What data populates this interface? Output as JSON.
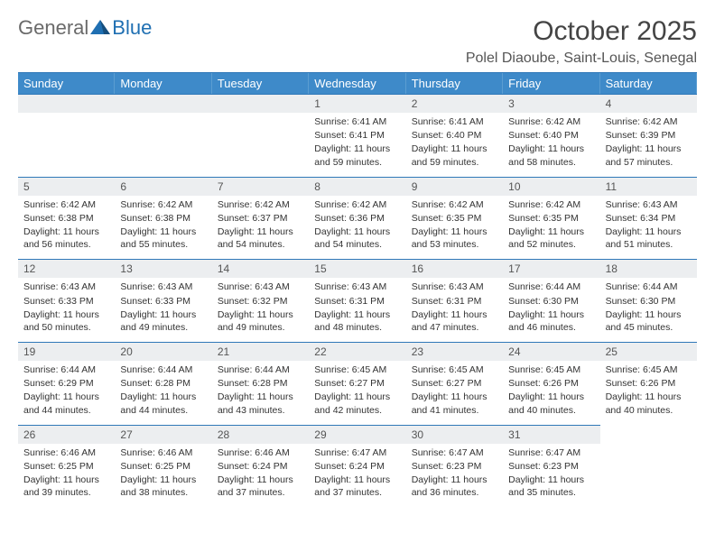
{
  "brand": {
    "word1": "General",
    "word2": "Blue"
  },
  "title": "October 2025",
  "location": "Polel Diaoube, Saint-Louis, Senegal",
  "colors": {
    "header_blue": "#3e8ac9",
    "border_blue": "#2f78b8",
    "band_gray": "#eceef0",
    "text_dark": "#333333",
    "logo_gray": "#6a6a6a",
    "logo_blue": "#1f6fb2"
  },
  "daynames": [
    "Sunday",
    "Monday",
    "Tuesday",
    "Wednesday",
    "Thursday",
    "Friday",
    "Saturday"
  ],
  "leadingBlanks": 3,
  "days": [
    {
      "d": "1",
      "sr": "6:41 AM",
      "ss": "6:41 PM",
      "dl": "11 hours and 59 minutes."
    },
    {
      "d": "2",
      "sr": "6:41 AM",
      "ss": "6:40 PM",
      "dl": "11 hours and 59 minutes."
    },
    {
      "d": "3",
      "sr": "6:42 AM",
      "ss": "6:40 PM",
      "dl": "11 hours and 58 minutes."
    },
    {
      "d": "4",
      "sr": "6:42 AM",
      "ss": "6:39 PM",
      "dl": "11 hours and 57 minutes."
    },
    {
      "d": "5",
      "sr": "6:42 AM",
      "ss": "6:38 PM",
      "dl": "11 hours and 56 minutes."
    },
    {
      "d": "6",
      "sr": "6:42 AM",
      "ss": "6:38 PM",
      "dl": "11 hours and 55 minutes."
    },
    {
      "d": "7",
      "sr": "6:42 AM",
      "ss": "6:37 PM",
      "dl": "11 hours and 54 minutes."
    },
    {
      "d": "8",
      "sr": "6:42 AM",
      "ss": "6:36 PM",
      "dl": "11 hours and 54 minutes."
    },
    {
      "d": "9",
      "sr": "6:42 AM",
      "ss": "6:35 PM",
      "dl": "11 hours and 53 minutes."
    },
    {
      "d": "10",
      "sr": "6:42 AM",
      "ss": "6:35 PM",
      "dl": "11 hours and 52 minutes."
    },
    {
      "d": "11",
      "sr": "6:43 AM",
      "ss": "6:34 PM",
      "dl": "11 hours and 51 minutes."
    },
    {
      "d": "12",
      "sr": "6:43 AM",
      "ss": "6:33 PM",
      "dl": "11 hours and 50 minutes."
    },
    {
      "d": "13",
      "sr": "6:43 AM",
      "ss": "6:33 PM",
      "dl": "11 hours and 49 minutes."
    },
    {
      "d": "14",
      "sr": "6:43 AM",
      "ss": "6:32 PM",
      "dl": "11 hours and 49 minutes."
    },
    {
      "d": "15",
      "sr": "6:43 AM",
      "ss": "6:31 PM",
      "dl": "11 hours and 48 minutes."
    },
    {
      "d": "16",
      "sr": "6:43 AM",
      "ss": "6:31 PM",
      "dl": "11 hours and 47 minutes."
    },
    {
      "d": "17",
      "sr": "6:44 AM",
      "ss": "6:30 PM",
      "dl": "11 hours and 46 minutes."
    },
    {
      "d": "18",
      "sr": "6:44 AM",
      "ss": "6:30 PM",
      "dl": "11 hours and 45 minutes."
    },
    {
      "d": "19",
      "sr": "6:44 AM",
      "ss": "6:29 PM",
      "dl": "11 hours and 44 minutes."
    },
    {
      "d": "20",
      "sr": "6:44 AM",
      "ss": "6:28 PM",
      "dl": "11 hours and 44 minutes."
    },
    {
      "d": "21",
      "sr": "6:44 AM",
      "ss": "6:28 PM",
      "dl": "11 hours and 43 minutes."
    },
    {
      "d": "22",
      "sr": "6:45 AM",
      "ss": "6:27 PM",
      "dl": "11 hours and 42 minutes."
    },
    {
      "d": "23",
      "sr": "6:45 AM",
      "ss": "6:27 PM",
      "dl": "11 hours and 41 minutes."
    },
    {
      "d": "24",
      "sr": "6:45 AM",
      "ss": "6:26 PM",
      "dl": "11 hours and 40 minutes."
    },
    {
      "d": "25",
      "sr": "6:45 AM",
      "ss": "6:26 PM",
      "dl": "11 hours and 40 minutes."
    },
    {
      "d": "26",
      "sr": "6:46 AM",
      "ss": "6:25 PM",
      "dl": "11 hours and 39 minutes."
    },
    {
      "d": "27",
      "sr": "6:46 AM",
      "ss": "6:25 PM",
      "dl": "11 hours and 38 minutes."
    },
    {
      "d": "28",
      "sr": "6:46 AM",
      "ss": "6:24 PM",
      "dl": "11 hours and 37 minutes."
    },
    {
      "d": "29",
      "sr": "6:47 AM",
      "ss": "6:24 PM",
      "dl": "11 hours and 37 minutes."
    },
    {
      "d": "30",
      "sr": "6:47 AM",
      "ss": "6:23 PM",
      "dl": "11 hours and 36 minutes."
    },
    {
      "d": "31",
      "sr": "6:47 AM",
      "ss": "6:23 PM",
      "dl": "11 hours and 35 minutes."
    }
  ],
  "labels": {
    "sunrise": "Sunrise:",
    "sunset": "Sunset:",
    "daylight": "Daylight:"
  }
}
